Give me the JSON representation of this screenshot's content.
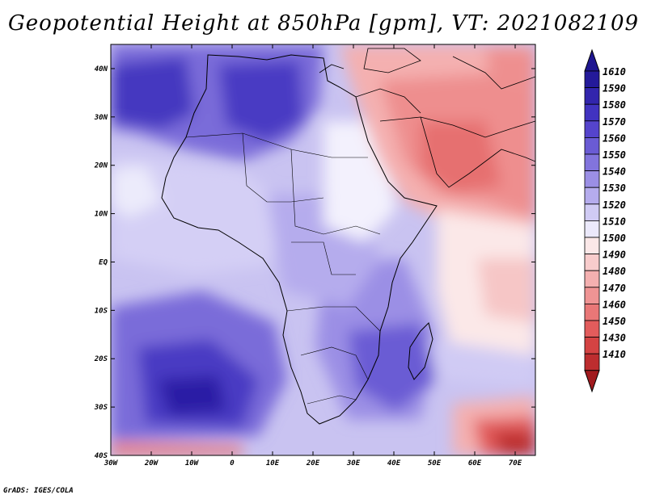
{
  "title": "Geopotential Height at 850hPa [gpm], VT: 2021082109",
  "credit": "GrADS: IGES/COLA",
  "map": {
    "variable": "Geopotential Height at 850hPa",
    "units": "gpm",
    "valid_time": "2021082109",
    "lon_range": [
      -30,
      75
    ],
    "lat_range": [
      -40,
      45
    ],
    "lat_ticks": [
      {
        "value": 40,
        "label": "40N"
      },
      {
        "value": 30,
        "label": "30N"
      },
      {
        "value": 20,
        "label": "20N"
      },
      {
        "value": 10,
        "label": "10N"
      },
      {
        "value": 0,
        "label": "EQ"
      },
      {
        "value": -10,
        "label": "10S"
      },
      {
        "value": -20,
        "label": "20S"
      },
      {
        "value": -30,
        "label": "30S"
      },
      {
        "value": -40,
        "label": "40S"
      }
    ],
    "lon_ticks": [
      {
        "value": -30,
        "label": "30W"
      },
      {
        "value": -20,
        "label": "20W"
      },
      {
        "value": -10,
        "label": "10W"
      },
      {
        "value": 0,
        "label": "0"
      },
      {
        "value": 10,
        "label": "10E"
      },
      {
        "value": 20,
        "label": "20E"
      },
      {
        "value": 30,
        "label": "30E"
      },
      {
        "value": 40,
        "label": "40E"
      },
      {
        "value": 50,
        "label": "50E"
      },
      {
        "value": 60,
        "label": "60E"
      },
      {
        "value": 70,
        "label": "70E"
      }
    ]
  },
  "colorbar": {
    "top_cap_color": "#1e1690",
    "bottom_cap_color": "#a11a1e",
    "levels": [
      {
        "label": "1610",
        "color": "#241a9a"
      },
      {
        "label": "1590",
        "color": "#3225ad"
      },
      {
        "label": "1580",
        "color": "#4133c0"
      },
      {
        "label": "1570",
        "color": "#5544cc"
      },
      {
        "label": "1560",
        "color": "#6a5bd4"
      },
      {
        "label": "1550",
        "color": "#8274dd"
      },
      {
        "label": "1540",
        "color": "#9b8fe5"
      },
      {
        "label": "1530",
        "color": "#b5aced"
      },
      {
        "label": "1520",
        "color": "#d0cbf4"
      },
      {
        "label": "1510",
        "color": "#ebe9fb"
      },
      {
        "label": "1500",
        "color": "#fbe8e8"
      },
      {
        "label": "1490",
        "color": "#f8cccc"
      },
      {
        "label": "1480",
        "color": "#f4b0b0"
      },
      {
        "label": "1470",
        "color": "#ef9494"
      },
      {
        "label": "1460",
        "color": "#e97777"
      },
      {
        "label": "1450",
        "color": "#e25c5c"
      },
      {
        "label": "1430",
        "color": "#d44343"
      },
      {
        "label": "1410",
        "color": "#bd2d2f"
      }
    ]
  }
}
